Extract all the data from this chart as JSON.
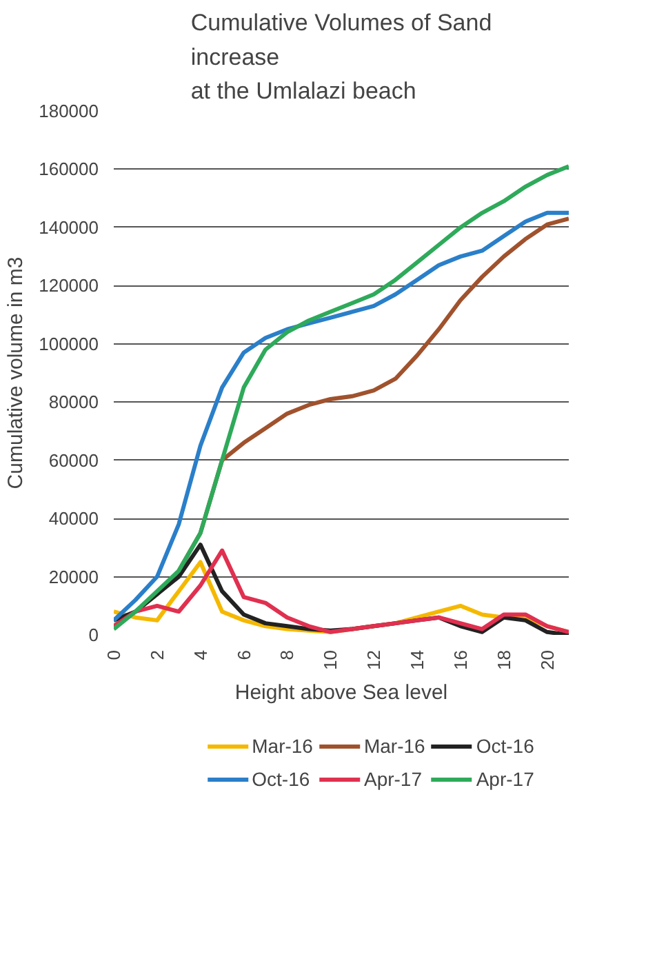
{
  "chart_data": {
    "type": "line",
    "title": "Cumulative Volumes of Sand\nincrease\nat the Umlalazi beach",
    "xlabel": "Height above Sea level",
    "ylabel": "Cumulative volume in m3",
    "x": [
      0,
      1,
      2,
      3,
      4,
      5,
      6,
      7,
      8,
      9,
      10,
      11,
      12,
      13,
      14,
      15,
      16,
      17,
      18,
      19,
      20,
      21
    ],
    "xlim": [
      0,
      21
    ],
    "xticks": [
      0,
      2,
      4,
      6,
      8,
      10,
      12,
      14,
      16,
      18,
      20
    ],
    "ylim": [
      0,
      180000
    ],
    "yticks": [
      0,
      20000,
      40000,
      60000,
      80000,
      100000,
      120000,
      140000,
      160000,
      180000
    ],
    "grid": "y",
    "legend": "bottom",
    "marker": "none",
    "line_style": "solid",
    "series": [
      {
        "name": "Mar-16",
        "color": "#f5b800",
        "values": [
          8000,
          6000,
          5000,
          15000,
          25000,
          8000,
          5000,
          3000,
          2000,
          1500,
          1000,
          2000,
          3000,
          4000,
          6000,
          8000,
          10000,
          7000,
          6000,
          6000,
          3000,
          1000
        ]
      },
      {
        "name": "Mar-16",
        "color": "#a0522d",
        "values": [
          3000,
          8000,
          14000,
          22000,
          35000,
          60000,
          66000,
          71000,
          76000,
          79000,
          81000,
          82000,
          84000,
          88000,
          96000,
          105000,
          115000,
          123000,
          130000,
          136000,
          141000,
          143000
        ]
      },
      {
        "name": "Oct-16",
        "color": "#222222",
        "values": [
          5000,
          8000,
          14000,
          20000,
          31000,
          15000,
          7000,
          4000,
          3000,
          2000,
          1500,
          2000,
          3000,
          4000,
          5000,
          6000,
          3000,
          1000,
          6000,
          5000,
          1000,
          0
        ]
      },
      {
        "name": "Oct-16",
        "color": "#2a7fc9",
        "values": [
          5000,
          12000,
          20000,
          38000,
          65000,
          85000,
          97000,
          102000,
          105000,
          107000,
          109000,
          111000,
          113000,
          117000,
          122000,
          127000,
          130000,
          132000,
          137000,
          142000,
          145000,
          145000
        ]
      },
      {
        "name": "Apr-17",
        "color": "#e03050",
        "values": [
          3000,
          8000,
          10000,
          8000,
          17000,
          29000,
          13000,
          11000,
          6000,
          3000,
          1000,
          2000,
          3000,
          4000,
          5000,
          6000,
          4000,
          2000,
          7000,
          7000,
          3000,
          1000
        ]
      },
      {
        "name": "Apr-17",
        "color": "#2eaa5a",
        "values": [
          2000,
          8000,
          15000,
          22000,
          35000,
          60000,
          85000,
          98000,
          104000,
          108000,
          111000,
          114000,
          117000,
          122000,
          128000,
          134000,
          140000,
          145000,
          149000,
          154000,
          158000,
          161000
        ]
      }
    ]
  }
}
